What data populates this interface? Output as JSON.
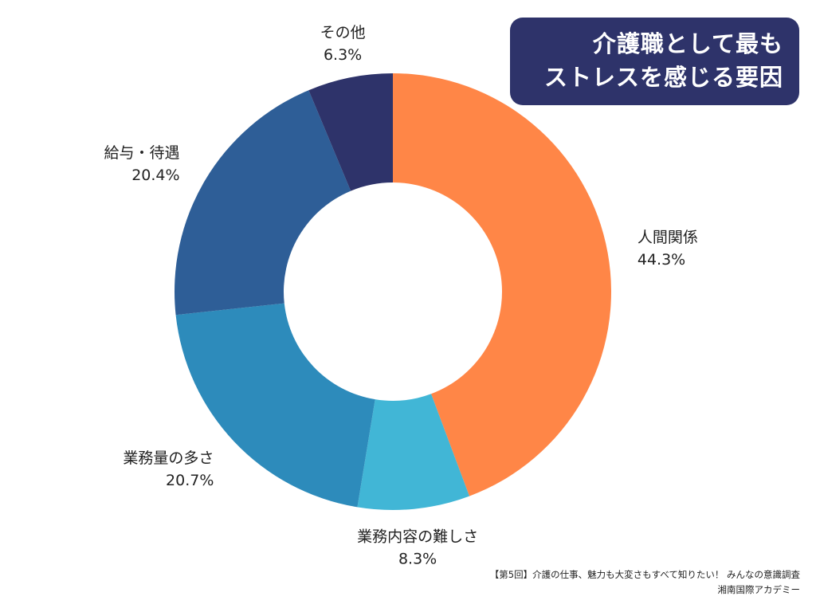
{
  "chart_data": {
    "type": "pie",
    "title": [
      "介護職として最も",
      "ストレスを感じる要因"
    ],
    "categories": [
      "人間関係",
      "業務内容の難しさ",
      "業務量の多さ",
      "給与・待遇",
      "その他"
    ],
    "values": [
      44.3,
      8.3,
      20.7,
      20.4,
      6.3
    ],
    "value_labels": [
      "44.3%",
      "8.3%",
      "20.7%",
      "20.4%",
      "6.3%"
    ],
    "colors": [
      "#ff8647",
      "#41b6d6",
      "#2d8bbb",
      "#2e5e97",
      "#2e336a"
    ],
    "donut": true,
    "start_angle": "12 o'clock",
    "direction": "clockwise"
  },
  "theme": {
    "title_bg": "#2e336a"
  },
  "source": {
    "line1": "【第5回】介護の仕事、魅力も大変さもすべて知りたい！ みんなの意識調査",
    "line2": "湘南国際アカデミー"
  }
}
